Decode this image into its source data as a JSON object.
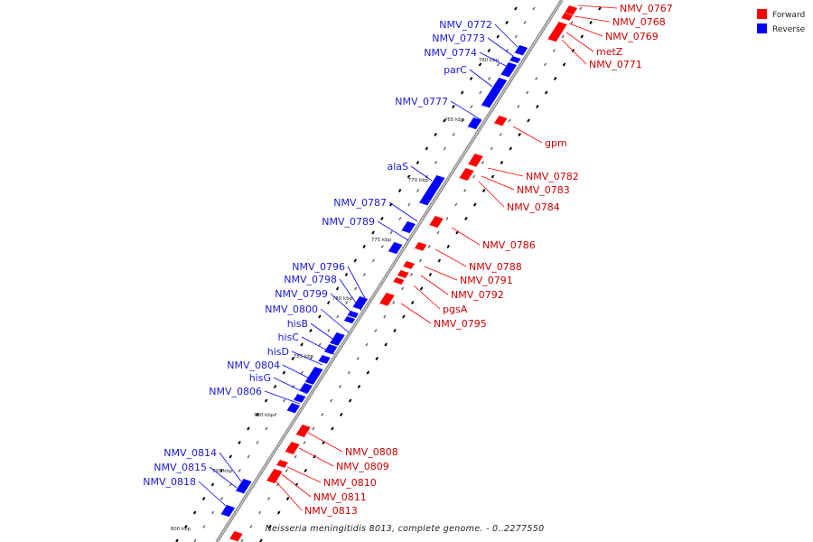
{
  "legend": [
    {
      "label": "Forward",
      "color": "#ff0000"
    },
    {
      "label": "Reverse",
      "color": "#0000ff"
    }
  ],
  "caption": "Neisseria meningitidis 8013, complete genome. - 0..2277550",
  "colors": {
    "forward": "#ff0000",
    "reverse": "#0000ff",
    "axis": "#999999"
  },
  "ticks": [
    "760 kbp",
    "765 kbp",
    "770 kbp",
    "775 kbp",
    "780 kbp",
    "785 kbp",
    "790 kbp",
    "795 kbp",
    "800 kbp"
  ],
  "genes_forward": [
    "NMV_0767",
    "NMV_0768",
    "NMV_0769",
    "metZ",
    "NMV_0771",
    "gpm",
    "NMV_0782",
    "NMV_0783",
    "NMV_0784",
    "NMV_0786",
    "NMV_0788",
    "NMV_0791",
    "NMV_0792",
    "pgsA",
    "NMV_0795",
    "NMV_0808",
    "NMV_0809",
    "NMV_0810",
    "NMV_0811",
    "NMV_0813"
  ],
  "genes_reverse": [
    "NMV_0772",
    "NMV_0773",
    "NMV_0774",
    "parC",
    "NMV_0777",
    "alaS",
    "NMV_0787",
    "NMV_0789",
    "NMV_0796",
    "NMV_0798",
    "NMV_0799",
    "NMV_0800",
    "hisB",
    "hisC",
    "hisD",
    "NMV_0804",
    "hisG",
    "NMV_0806",
    "NMV_0814",
    "NMV_0815",
    "NMV_0818"
  ]
}
